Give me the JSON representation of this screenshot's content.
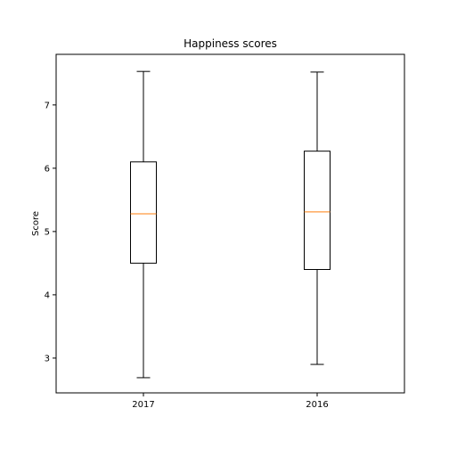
{
  "chart_data": {
    "type": "boxplot",
    "title": "Happiness scores",
    "xlabel": "",
    "ylabel": "Score",
    "ylim": [
      2.45,
      7.8
    ],
    "yticks": [
      3,
      4,
      5,
      6,
      7
    ],
    "grid": false,
    "legend": "none",
    "colors": {
      "box": "#000000",
      "median": "#ff7f0e"
    },
    "categories": [
      "2017",
      "2016"
    ],
    "boxes": [
      {
        "label": "2017",
        "whisker_low": 2.69,
        "q1": 4.5,
        "median": 5.28,
        "q3": 6.1,
        "whisker_high": 7.53
      },
      {
        "label": "2016",
        "whisker_low": 2.9,
        "q1": 4.4,
        "median": 5.31,
        "q3": 6.27,
        "whisker_high": 7.52
      }
    ]
  }
}
